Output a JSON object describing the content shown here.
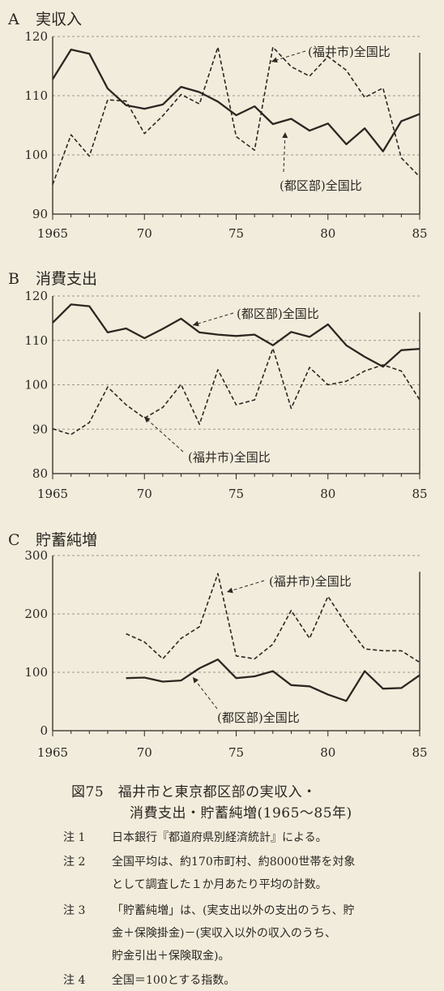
{
  "colors": {
    "background": "#f2ecdc",
    "ink": "#2b2722",
    "grid": "#9c958a"
  },
  "chart_data": [
    {
      "id": "A",
      "panel_label": "A",
      "title": "実収入",
      "type": "line",
      "xlim": [
        1965,
        1985
      ],
      "ylim": [
        90,
        120
      ],
      "x_ticks": [
        1965,
        1970,
        1975,
        1980,
        1985
      ],
      "x_tick_labels": [
        "1965",
        "70",
        "75",
        "80",
        "85"
      ],
      "y_ticks": [
        90,
        100,
        110,
        120
      ],
      "y_tick_labels": [
        "90",
        "100",
        "110",
        "120"
      ],
      "grid": "horizontal dashed",
      "series": [
        {
          "name": "(都区部)全国比",
          "style": "solid",
          "x": [
            1965,
            1966,
            1967,
            1968,
            1969,
            1970,
            1971,
            1972,
            1973,
            1974,
            1975,
            1976,
            1977,
            1978,
            1979,
            1980,
            1981,
            1982,
            1983,
            1984,
            1985
          ],
          "values": [
            112.8,
            117.8,
            117.1,
            111.2,
            108.4,
            107.8,
            108.5,
            111.5,
            110.6,
            109.0,
            106.7,
            108.2,
            105.2,
            106.1,
            104.1,
            105.3,
            101.8,
            104.5,
            100.6,
            105.7,
            106.9
          ]
        },
        {
          "name": "(福井市)全国比",
          "style": "dashed",
          "x": [
            1965,
            1966,
            1967,
            1968,
            1969,
            1970,
            1971,
            1972,
            1973,
            1974,
            1975,
            1976,
            1977,
            1978,
            1979,
            1980,
            1981,
            1982,
            1983,
            1984,
            1985
          ],
          "values": [
            95.0,
            103.4,
            99.8,
            109.3,
            109.1,
            103.6,
            106.6,
            110.2,
            108.6,
            118.2,
            103.1,
            100.8,
            118.2,
            114.9,
            113.3,
            116.6,
            114.3,
            109.7,
            111.3,
            99.5,
            96.3
          ]
        }
      ]
    },
    {
      "id": "B",
      "panel_label": "B",
      "title": "消費支出",
      "type": "line",
      "xlim": [
        1965,
        1985
      ],
      "ylim": [
        80,
        120
      ],
      "x_ticks": [
        1965,
        1970,
        1975,
        1980,
        1985
      ],
      "x_tick_labels": [
        "1965",
        "70",
        "75",
        "80",
        "85"
      ],
      "y_ticks": [
        80,
        90,
        100,
        110,
        120
      ],
      "y_tick_labels": [
        "80",
        "90",
        "100",
        "110",
        "120"
      ],
      "grid": "horizontal dashed",
      "series": [
        {
          "name": "(都区部)全国比",
          "style": "solid",
          "x": [
            1965,
            1966,
            1967,
            1968,
            1969,
            1970,
            1971,
            1972,
            1973,
            1974,
            1975,
            1976,
            1977,
            1978,
            1979,
            1980,
            1981,
            1982,
            1983,
            1984,
            1985
          ],
          "values": [
            114.0,
            118.1,
            117.7,
            111.8,
            112.7,
            110.5,
            112.6,
            114.9,
            111.8,
            111.3,
            111.0,
            111.3,
            108.9,
            111.9,
            110.8,
            113.6,
            108.9,
            106.3,
            104.1,
            107.8,
            108.1
          ]
        },
        {
          "name": "(福井市)全国比",
          "style": "dashed",
          "x": [
            1965,
            1966,
            1967,
            1968,
            1969,
            1970,
            1971,
            1972,
            1973,
            1974,
            1975,
            1976,
            1977,
            1978,
            1979,
            1980,
            1981,
            1982,
            1983,
            1984,
            1985
          ],
          "values": [
            90.1,
            88.8,
            91.5,
            99.5,
            95.5,
            92.5,
            94.9,
            100.1,
            91.1,
            103.4,
            95.5,
            96.6,
            108.2,
            94.7,
            103.9,
            100.0,
            100.8,
            103.1,
            104.5,
            103.1,
            96.6
          ]
        }
      ]
    },
    {
      "id": "C",
      "panel_label": "C",
      "title": "貯蓄純増",
      "type": "line",
      "xlim": [
        1965,
        1985
      ],
      "ylim": [
        0,
        300
      ],
      "x_ticks": [
        1965,
        1970,
        1975,
        1980,
        1985
      ],
      "x_tick_labels": [
        "1965",
        "70",
        "75",
        "80",
        "85"
      ],
      "y_ticks": [
        0,
        100,
        200,
        300
      ],
      "y_tick_labels": [
        "0",
        "100",
        "200",
        "300"
      ],
      "grid": "horizontal dashed",
      "series": [
        {
          "name": "(都区部)全国比",
          "style": "solid",
          "x": [
            1969,
            1970,
            1971,
            1972,
            1973,
            1974,
            1975,
            1976,
            1977,
            1978,
            1979,
            1980,
            1981,
            1982,
            1983,
            1984,
            1985
          ],
          "values": [
            90,
            91,
            84,
            86,
            107,
            122,
            90,
            93,
            102,
            78,
            76,
            62,
            51,
            102,
            72,
            73,
            95
          ]
        },
        {
          "name": "(福井市)全国比",
          "style": "dashed",
          "x": [
            1969,
            1970,
            1971,
            1972,
            1973,
            1974,
            1975,
            1976,
            1977,
            1978,
            1979,
            1980,
            1981,
            1982,
            1983,
            1984,
            1985
          ],
          "values": [
            166,
            152,
            123,
            158,
            178,
            269,
            128,
            123,
            148,
            206,
            158,
            230,
            182,
            140,
            137,
            137,
            117
          ]
        }
      ]
    }
  ],
  "labels": {
    "A_solid": "(都区部)全国比",
    "A_dashed": "(福井市)全国比",
    "B_solid": "(都区部)全国比",
    "B_dashed": "(福井市)全国比",
    "C_solid": "(都区部)全国比",
    "C_dashed": "(福井市)全国比"
  },
  "caption": {
    "title_line1": "図75　福井市と東京都区部の実収入・",
    "title_line2": "消費支出・貯蓄純増(1965〜85年)",
    "notes": [
      {
        "label": "注 1",
        "lines": [
          "日本銀行『都道府県別経済統計』による。"
        ]
      },
      {
        "label": "注 2",
        "lines": [
          "全国平均は、約170市町村、約8000世帯を対象",
          "として調査した１か月あたり平均の計数。"
        ]
      },
      {
        "label": "注 3",
        "lines": [
          "「貯蓄純増」は、(実支出以外の支出のうち、貯",
          "金＋保険掛金)－(実収入以外の収入のうち、",
          "貯金引出＋保険取金)。"
        ]
      },
      {
        "label": "注 4",
        "lines": [
          "全国＝100とする指数。"
        ]
      }
    ]
  }
}
